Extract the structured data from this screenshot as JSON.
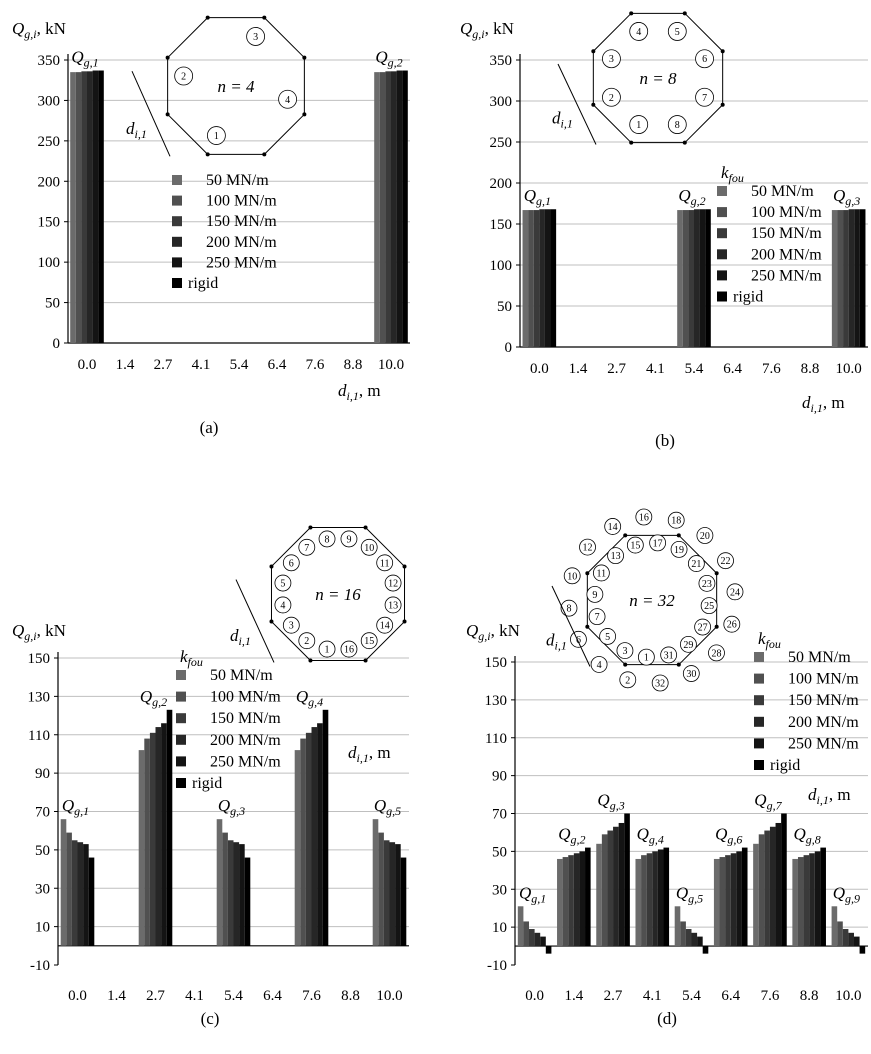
{
  "chart_data": [
    {
      "type": "bar",
      "panel_label": "(a)",
      "ylabel": "Q",
      "ylabel_sub": "g,i",
      "ylabel_unit": ", kN",
      "xlabel": "d",
      "xlabel_sub": "i,1",
      "xlabel_unit": ", m",
      "ylim": [
        0,
        350
      ],
      "yticks": [
        0,
        50,
        100,
        150,
        200,
        250,
        300,
        350
      ],
      "categories": [
        "0.0",
        "1.4",
        "2.7",
        "4.1",
        "5.4",
        "6.4",
        "7.6",
        "8.8",
        "10.0"
      ],
      "grid": true,
      "legend": {
        "title": "",
        "position": "center"
      },
      "series": [
        {
          "name": "50 MN/m",
          "color": "#6b6b6b",
          "values": [
            335,
            null,
            null,
            null,
            null,
            null,
            null,
            null,
            335
          ]
        },
        {
          "name": "100 MN/m",
          "color": "#505050",
          "values": [
            335,
            null,
            null,
            null,
            null,
            null,
            null,
            null,
            335
          ]
        },
        {
          "name": "150 MN/m",
          "color": "#3a3a3a",
          "values": [
            336,
            null,
            null,
            null,
            null,
            null,
            null,
            null,
            336
          ]
        },
        {
          "name": "200 MN/m",
          "color": "#262626",
          "values": [
            336,
            null,
            null,
            null,
            null,
            null,
            null,
            null,
            336
          ]
        },
        {
          "name": "250 MN/m",
          "color": "#141414",
          "values": [
            337,
            null,
            null,
            null,
            null,
            null,
            null,
            null,
            337
          ]
        },
        {
          "name": "rigid",
          "color": "#000000",
          "values": [
            337,
            null,
            null,
            null,
            null,
            null,
            null,
            null,
            337
          ]
        }
      ],
      "bar_labels": [
        {
          "category": "0.0",
          "text": "Q",
          "sub": "g,1"
        },
        {
          "category": "10.0",
          "text": "Q",
          "sub": "g,2"
        }
      ],
      "inset": {
        "n_label": "n = 4",
        "pile_labels": [
          "1",
          "2",
          "3",
          "4"
        ],
        "dim_label": "d",
        "dim_sub": "i,1"
      }
    },
    {
      "type": "bar",
      "panel_label": "(b)",
      "ylabel": "Q",
      "ylabel_sub": "g,i",
      "ylabel_unit": ", kN",
      "xlabel": "d",
      "xlabel_sub": "i,1",
      "xlabel_unit": ", m",
      "ylim": [
        0,
        350
      ],
      "yticks": [
        0,
        50,
        100,
        150,
        200,
        250,
        300,
        350
      ],
      "categories": [
        "0.0",
        "1.4",
        "2.7",
        "4.1",
        "5.4",
        "6.4",
        "7.6",
        "8.8",
        "10.0"
      ],
      "grid": true,
      "legend": {
        "title": "k",
        "title_sub": "fou",
        "position": "right"
      },
      "series": [
        {
          "name": "50 MN/m",
          "color": "#6b6b6b",
          "values": [
            167,
            null,
            null,
            null,
            167,
            null,
            null,
            null,
            167
          ]
        },
        {
          "name": "100 MN/m",
          "color": "#505050",
          "values": [
            167,
            null,
            null,
            null,
            167,
            null,
            null,
            null,
            167
          ]
        },
        {
          "name": "150 MN/m",
          "color": "#3a3a3a",
          "values": [
            167,
            null,
            null,
            null,
            167,
            null,
            null,
            null,
            167
          ]
        },
        {
          "name": "200 MN/m",
          "color": "#262626",
          "values": [
            168,
            null,
            null,
            null,
            168,
            null,
            null,
            null,
            168
          ]
        },
        {
          "name": "250 MN/m",
          "color": "#141414",
          "values": [
            168,
            null,
            null,
            null,
            168,
            null,
            null,
            null,
            168
          ]
        },
        {
          "name": "rigid",
          "color": "#000000",
          "values": [
            168,
            null,
            null,
            null,
            168,
            null,
            null,
            null,
            168
          ]
        }
      ],
      "bar_labels": [
        {
          "category": "0.0",
          "text": "Q",
          "sub": "g,1"
        },
        {
          "category": "5.4",
          "text": "Q",
          "sub": "g,2"
        },
        {
          "category": "10.0",
          "text": "Q",
          "sub": "g,3"
        }
      ],
      "inset": {
        "n_label": "n = 8",
        "pile_labels": [
          "1",
          "2",
          "3",
          "4",
          "5",
          "6",
          "7",
          "8"
        ],
        "dim_label": "d",
        "dim_sub": "i,1"
      }
    },
    {
      "type": "bar",
      "panel_label": "(c)",
      "ylabel": "Q",
      "ylabel_sub": "g,i",
      "ylabel_unit": ", kN",
      "xlabel": "d",
      "xlabel_sub": "i,1",
      "xlabel_unit": ", m",
      "ylim": [
        -10,
        150
      ],
      "yticks": [
        -10,
        10,
        30,
        50,
        70,
        90,
        110,
        130,
        150
      ],
      "categories": [
        "0.0",
        "1.4",
        "2.7",
        "4.1",
        "5.4",
        "6.4",
        "7.6",
        "8.8",
        "10.0"
      ],
      "grid": true,
      "legend": {
        "title": "k",
        "title_sub": "fou",
        "position": "top-center"
      },
      "series": [
        {
          "name": "50 MN/m",
          "color": "#6b6b6b",
          "values": [
            66,
            null,
            102,
            null,
            66,
            null,
            102,
            null,
            66
          ]
        },
        {
          "name": "100 MN/m",
          "color": "#505050",
          "values": [
            59,
            null,
            108,
            null,
            59,
            null,
            108,
            null,
            59
          ]
        },
        {
          "name": "150 MN/m",
          "color": "#3a3a3a",
          "values": [
            55,
            null,
            111,
            null,
            55,
            null,
            111,
            null,
            55
          ]
        },
        {
          "name": "200 MN/m",
          "color": "#262626",
          "values": [
            54,
            null,
            114,
            null,
            54,
            null,
            114,
            null,
            54
          ]
        },
        {
          "name": "250 MN/m",
          "color": "#141414",
          "values": [
            53,
            null,
            116,
            null,
            53,
            null,
            116,
            null,
            53
          ]
        },
        {
          "name": "rigid",
          "color": "#000000",
          "values": [
            46,
            null,
            123,
            null,
            46,
            null,
            123,
            null,
            46
          ]
        }
      ],
      "bar_labels": [
        {
          "category": "0.0",
          "text": "Q",
          "sub": "g,1"
        },
        {
          "category": "2.7",
          "text": "Q",
          "sub": "g,2"
        },
        {
          "category": "5.4",
          "text": "Q",
          "sub": "g,3"
        },
        {
          "category": "7.6",
          "text": "Q",
          "sub": "g,4"
        },
        {
          "category": "10.0",
          "text": "Q",
          "sub": "g,5"
        }
      ],
      "inset": {
        "n_label": "n = 16",
        "pile_labels": [
          "1",
          "2",
          "3",
          "4",
          "5",
          "6",
          "7",
          "8",
          "9",
          "10",
          "11",
          "12",
          "13",
          "14",
          "15",
          "16"
        ],
        "dim_label": "d",
        "dim_sub": "i,1"
      }
    },
    {
      "type": "bar",
      "panel_label": "(d)",
      "ylabel": "Q",
      "ylabel_sub": "g,i",
      "ylabel_unit": ", kN",
      "xlabel": "d",
      "xlabel_sub": "i,1",
      "xlabel_unit": ", m",
      "ylim": [
        -10,
        150
      ],
      "yticks": [
        -10,
        10,
        30,
        50,
        70,
        90,
        110,
        130,
        150
      ],
      "categories": [
        "0.0",
        "1.4",
        "2.7",
        "4.1",
        "5.4",
        "6.4",
        "7.6",
        "8.8",
        "10.0"
      ],
      "grid": true,
      "legend": {
        "title": "k",
        "title_sub": "fou",
        "position": "right"
      },
      "series": [
        {
          "name": "50 MN/m",
          "color": "#6b6b6b",
          "values": [
            21,
            46,
            54,
            46,
            21,
            46,
            54,
            46,
            21
          ]
        },
        {
          "name": "100 MN/m",
          "color": "#505050",
          "values": [
            13,
            47,
            59,
            48,
            13,
            47,
            59,
            47,
            13
          ]
        },
        {
          "name": "150 MN/m",
          "color": "#3a3a3a",
          "values": [
            9,
            48,
            61,
            49,
            9,
            48,
            61,
            48,
            9
          ]
        },
        {
          "name": "200 MN/m",
          "color": "#262626",
          "values": [
            7,
            49,
            63,
            50,
            7,
            49,
            63,
            49,
            7
          ]
        },
        {
          "name": "250 MN/m",
          "color": "#141414",
          "values": [
            5,
            50,
            65,
            51,
            5,
            50,
            65,
            50,
            5
          ]
        },
        {
          "name": "rigid",
          "color": "#000000",
          "values": [
            -4,
            52,
            70,
            52,
            -4,
            52,
            70,
            52,
            -4
          ]
        }
      ],
      "bar_labels": [
        {
          "category": "0.0",
          "text": "Q",
          "sub": "g,1"
        },
        {
          "category": "1.4",
          "text": "Q",
          "sub": "g,2"
        },
        {
          "category": "2.7",
          "text": "Q",
          "sub": "g,3"
        },
        {
          "category": "4.1",
          "text": "Q",
          "sub": "g,4"
        },
        {
          "category": "5.4",
          "text": "Q",
          "sub": "g,5"
        },
        {
          "category": "6.4",
          "text": "Q",
          "sub": "g,6"
        },
        {
          "category": "7.6",
          "text": "Q",
          "sub": "g,7"
        },
        {
          "category": "8.8",
          "text": "Q",
          "sub": "g,8"
        },
        {
          "category": "10.0",
          "text": "Q",
          "sub": "g,9"
        }
      ],
      "inset": {
        "n_label": "n = 32",
        "pile_labels": [
          "1",
          "2",
          "3",
          "4",
          "5",
          "6",
          "7",
          "8",
          "9",
          "10",
          "11",
          "12",
          "13",
          "14",
          "15",
          "16",
          "17",
          "18",
          "19",
          "20",
          "21",
          "22",
          "23",
          "24",
          "25",
          "26",
          "27",
          "28",
          "29",
          "30",
          "31",
          "32"
        ],
        "dim_label": "d",
        "dim_sub": "i,1"
      }
    }
  ]
}
